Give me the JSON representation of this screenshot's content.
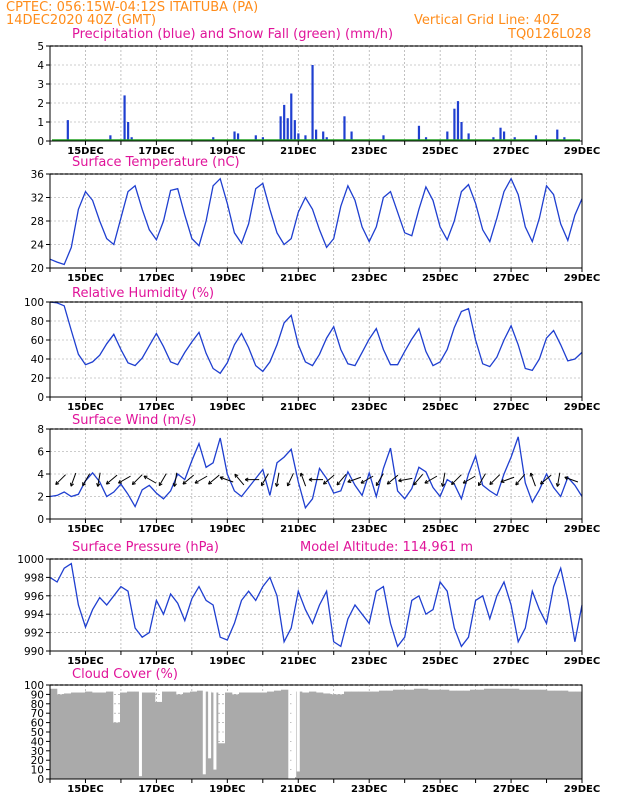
{
  "header": {
    "source_station": "CPTEC:   056:15W-04:12S   ITAITUBA (PA)",
    "init_time": "14DEC2020 40Z (GMT)",
    "grid_note": "Vertical Grid Line: 40Z",
    "code": "TQ0126L028"
  },
  "dates": [
    "15DEC",
    "17DEC",
    "19DEC",
    "21DEC",
    "23DEC",
    "25DEC",
    "27DEC",
    "29DEC"
  ],
  "colors": {
    "line": "#1f3fd0",
    "snow": "#20a020",
    "cloud": "#aaaaaa",
    "title": "#e0149a",
    "header": "#ff8c1a",
    "grid": "#999999"
  },
  "chart_data": [
    {
      "type": "bar",
      "title": "Precipitation (blue) and Snow Fall (green) (mm/h)",
      "ylim": [
        0,
        5
      ],
      "yticks": [
        "0",
        "1",
        "2",
        "3",
        "4",
        "5"
      ],
      "x_range_days": [
        14.0,
        29.0
      ],
      "series": [
        {
          "name": "Precipitation",
          "points": [
            [
              14.5,
              1.1
            ],
            [
              15.7,
              0.3
            ],
            [
              16.1,
              2.4
            ],
            [
              16.2,
              1.0
            ],
            [
              16.3,
              0.2
            ],
            [
              18.6,
              0.2
            ],
            [
              19.2,
              0.5
            ],
            [
              19.3,
              0.4
            ],
            [
              19.8,
              0.3
            ],
            [
              20.0,
              0.2
            ],
            [
              20.5,
              1.3
            ],
            [
              20.6,
              1.9
            ],
            [
              20.7,
              1.2
            ],
            [
              20.8,
              2.5
            ],
            [
              20.9,
              1.1
            ],
            [
              21.0,
              0.4
            ],
            [
              21.2,
              0.3
            ],
            [
              21.4,
              4.0
            ],
            [
              21.5,
              0.6
            ],
            [
              21.7,
              0.5
            ],
            [
              21.8,
              0.2
            ],
            [
              22.3,
              1.3
            ],
            [
              22.5,
              0.5
            ],
            [
              23.4,
              0.3
            ],
            [
              24.4,
              0.8
            ],
            [
              24.6,
              0.2
            ],
            [
              25.2,
              0.5
            ],
            [
              25.4,
              1.7
            ],
            [
              25.5,
              2.1
            ],
            [
              25.6,
              1.0
            ],
            [
              25.8,
              0.4
            ],
            [
              26.5,
              0.2
            ],
            [
              26.7,
              0.7
            ],
            [
              26.8,
              0.5
            ],
            [
              27.1,
              0.2
            ],
            [
              27.7,
              0.3
            ],
            [
              28.3,
              0.6
            ],
            [
              28.5,
              0.2
            ]
          ]
        },
        {
          "name": "Snow Fall",
          "baseline": 0.05
        }
      ]
    },
    {
      "type": "line",
      "title": "Surface Temperature (nC)",
      "ylim": [
        20,
        36
      ],
      "yticks": [
        "20",
        "24",
        "28",
        "32",
        "36"
      ],
      "x": [
        14.0,
        14.2,
        14.4,
        14.6,
        14.8,
        15.0,
        15.2,
        15.4,
        15.6,
        15.8,
        16.0,
        16.2,
        16.4,
        16.6,
        16.8,
        17.0,
        17.2,
        17.4,
        17.6,
        17.8,
        18.0,
        18.2,
        18.4,
        18.6,
        18.8,
        19.0,
        19.2,
        19.4,
        19.6,
        19.8,
        20.0,
        20.2,
        20.4,
        20.6,
        20.8,
        21.0,
        21.2,
        21.4,
        21.6,
        21.8,
        22.0,
        22.2,
        22.4,
        22.6,
        22.8,
        23.0,
        23.2,
        23.4,
        23.6,
        23.8,
        24.0,
        24.2,
        24.4,
        24.6,
        24.8,
        25.0,
        25.2,
        25.4,
        25.6,
        25.8,
        26.0,
        26.2,
        26.4,
        26.6,
        26.8,
        27.0,
        27.2,
        27.4,
        27.6,
        27.8,
        28.0,
        28.2,
        28.4,
        28.6,
        28.8,
        29.0
      ],
      "values": [
        21.5,
        21.0,
        20.6,
        23.5,
        30.0,
        33.0,
        31.5,
        28.0,
        25.0,
        24.0,
        28.5,
        33.0,
        34.0,
        30.0,
        26.5,
        24.8,
        28.0,
        33.2,
        33.5,
        29.0,
        25.0,
        23.8,
        28.0,
        34.0,
        35.2,
        31.0,
        26.0,
        24.2,
        27.5,
        33.5,
        34.4,
        30.0,
        26.0,
        24.0,
        25.0,
        29.5,
        32.0,
        30.0,
        26.5,
        23.5,
        25.0,
        30.5,
        34.0,
        31.5,
        27.0,
        24.5,
        27.0,
        32.0,
        33.0,
        29.5,
        26.0,
        25.5,
        30.0,
        33.8,
        31.5,
        27.0,
        24.8,
        28.0,
        33.0,
        34.2,
        31.0,
        26.5,
        24.5,
        28.5,
        33.0,
        35.2,
        32.5,
        27.0,
        24.5,
        28.5,
        34.0,
        32.5,
        27.5,
        24.7,
        29.0,
        31.8
      ]
    },
    {
      "type": "line",
      "title": "Relative Humidity (%)",
      "ylim": [
        0,
        100
      ],
      "yticks": [
        "0",
        "20",
        "40",
        "60",
        "80",
        "100"
      ],
      "values": [
        100,
        99,
        96,
        70,
        45,
        34,
        37,
        44,
        56,
        66,
        50,
        36,
        33,
        41,
        54,
        67,
        53,
        37,
        34,
        47,
        58,
        68,
        46,
        30,
        25,
        36,
        55,
        67,
        52,
        33,
        27,
        37,
        55,
        78,
        86,
        55,
        37,
        33,
        45,
        62,
        74,
        50,
        35,
        33,
        47,
        61,
        72,
        50,
        34,
        34,
        48,
        61,
        72,
        48,
        33,
        37,
        50,
        73,
        90,
        93,
        60,
        35,
        32,
        42,
        60,
        75,
        55,
        30,
        28,
        40,
        62,
        70,
        55,
        38,
        40,
        47
      ]
    },
    {
      "type": "line",
      "title": "Surface Wind (m/s)",
      "ylim": [
        0,
        8
      ],
      "yticks": [
        "0",
        "2",
        "4",
        "6",
        "8"
      ],
      "values": [
        2.0,
        2.1,
        2.4,
        2.0,
        2.2,
        3.4,
        4.1,
        3.3,
        2.0,
        2.4,
        3.1,
        2.2,
        1.1,
        2.6,
        3.0,
        2.3,
        1.8,
        2.5,
        4.0,
        3.5,
        5.2,
        6.7,
        4.6,
        5.0,
        7.2,
        4.0,
        2.5,
        2.0,
        2.8,
        3.6,
        4.4,
        2.1,
        5.0,
        5.5,
        6.2,
        3.3,
        1.0,
        1.8,
        4.5,
        3.6,
        2.3,
        2.5,
        4.2,
        3.0,
        2.1,
        4.1,
        2.0,
        4.5,
        6.3,
        2.5,
        1.8,
        2.7,
        4.6,
        4.2,
        2.8,
        2.0,
        3.5,
        3.1,
        1.8,
        4.0,
        5.6,
        3.0,
        2.5,
        2.1,
        4.0,
        5.5,
        7.3,
        3.2,
        1.5,
        2.6,
        4.0,
        2.8,
        2.0,
        3.7,
        3.0,
        2.0
      ],
      "arrows_deg": [
        135,
        110,
        120,
        100,
        140,
        150,
        135,
        210,
        120,
        100,
        140,
        150,
        140,
        200,
        230,
        180,
        120,
        100,
        115,
        250,
        180,
        140,
        130,
        160,
        150,
        120,
        140,
        170,
        130,
        150,
        100,
        135,
        150,
        120,
        135,
        160,
        130,
        250,
        140,
        100,
        200
      ]
    },
    {
      "type": "line",
      "title": "Surface Pressure (hPa)",
      "annotation": "Model Altitude: 114.961 m",
      "ylim": [
        990,
        1000
      ],
      "yticks": [
        "990",
        "992",
        "994",
        "996",
        "998",
        "1000"
      ],
      "values": [
        998.0,
        997.5,
        999.0,
        999.5,
        995.0,
        992.6,
        994.5,
        995.8,
        995.0,
        996.0,
        997.0,
        996.5,
        992.5,
        991.5,
        992.0,
        995.5,
        994.0,
        996.2,
        995.2,
        993.3,
        995.7,
        997.0,
        995.5,
        995.0,
        991.5,
        991.2,
        993.0,
        995.5,
        996.5,
        995.5,
        997.0,
        998.0,
        996.0,
        991.0,
        992.5,
        996.5,
        994.5,
        993.0,
        995.0,
        996.5,
        991.0,
        990.5,
        993.5,
        995.0,
        994.0,
        993.0,
        996.5,
        997.0,
        993.0,
        990.5,
        991.5,
        995.5,
        996.0,
        994.0,
        994.5,
        997.5,
        996.5,
        992.5,
        990.5,
        991.5,
        995.5,
        996.0,
        993.5,
        996.0,
        997.5,
        995.0,
        991.0,
        992.5,
        996.5,
        994.5,
        993.0,
        997.0,
        999.0,
        995.5,
        991.0,
        995.0
      ]
    },
    {
      "type": "area",
      "title": "Cloud Cover (%)",
      "ylim": [
        0,
        100
      ],
      "yticks": [
        "0",
        "10",
        "20",
        "30",
        "40",
        "50",
        "60",
        "70",
        "80",
        "90",
        "100"
      ],
      "values": [
        96,
        90,
        91,
        92,
        92,
        93,
        92,
        92,
        93,
        60,
        92,
        93,
        93,
        92,
        92,
        82,
        93,
        93,
        90,
        92,
        93,
        94,
        93,
        92,
        38,
        92,
        90,
        92,
        92,
        92,
        92,
        93,
        94,
        95,
        0,
        93,
        92,
        93,
        92,
        91,
        90,
        90,
        93,
        93,
        93,
        93,
        93,
        94,
        94,
        95,
        95,
        95,
        96,
        96,
        95,
        95,
        95,
        94,
        94,
        94,
        95,
        95,
        96,
        96,
        96,
        96,
        96,
        95,
        95,
        95,
        95,
        94,
        94,
        94,
        93,
        93
      ],
      "dips": [
        [
          16.55,
          3
        ],
        [
          18.35,
          5
        ],
        [
          18.5,
          22
        ],
        [
          18.65,
          10
        ],
        [
          20.85,
          0
        ],
        [
          20.9,
          2
        ],
        [
          21.0,
          8
        ]
      ]
    }
  ]
}
